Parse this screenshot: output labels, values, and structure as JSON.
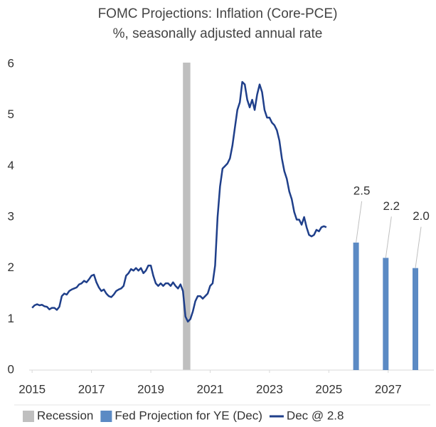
{
  "chart_data": {
    "type": "line",
    "title": "FOMC Projections: Inflation (Core-PCE)",
    "subtitle": "%, seasonally adjusted annual rate",
    "xlim": [
      2014.9,
      2028.3
    ],
    "xticks": [
      2015,
      2017,
      2019,
      2021,
      2023,
      2025,
      2027
    ],
    "ylim": [
      0,
      6
    ],
    "yticks": [
      0,
      1,
      2,
      3,
      4,
      5,
      6
    ],
    "grid": false,
    "legend": "bottom",
    "shading": {
      "name": "Recession",
      "color": "#bfbfbf",
      "x": [
        2020.083,
        2020.333
      ]
    },
    "series": [
      {
        "name": "Fed Projection for YE (Dec)",
        "type": "bar",
        "color": "#5b8ac4",
        "x": [
          2025.917,
          2026.917,
          2027.917
        ],
        "values": [
          2.5,
          2.2,
          2.0
        ],
        "value_labels": [
          "2.5",
          "2.2",
          "2.0"
        ]
      },
      {
        "name": "Dec @ 2.8",
        "type": "line",
        "color": "#1f3f8a",
        "x": [
          2015,
          2015.083,
          2015.167,
          2015.25,
          2015.333,
          2015.417,
          2015.5,
          2015.583,
          2015.667,
          2015.75,
          2015.833,
          2015.917,
          2016,
          2016.083,
          2016.167,
          2016.25,
          2016.333,
          2016.417,
          2016.5,
          2016.583,
          2016.667,
          2016.75,
          2016.833,
          2016.917,
          2017,
          2017.083,
          2017.167,
          2017.25,
          2017.333,
          2017.417,
          2017.5,
          2017.583,
          2017.667,
          2017.75,
          2017.833,
          2017.917,
          2018,
          2018.083,
          2018.167,
          2018.25,
          2018.333,
          2018.417,
          2018.5,
          2018.583,
          2018.667,
          2018.75,
          2018.833,
          2018.917,
          2019,
          2019.083,
          2019.167,
          2019.25,
          2019.333,
          2019.417,
          2019.5,
          2019.583,
          2019.667,
          2019.75,
          2019.833,
          2019.917,
          2020,
          2020.083,
          2020.167,
          2020.25,
          2020.333,
          2020.417,
          2020.5,
          2020.583,
          2020.667,
          2020.75,
          2020.833,
          2020.917,
          2021,
          2021.083,
          2021.167,
          2021.25,
          2021.333,
          2021.417,
          2021.5,
          2021.583,
          2021.667,
          2021.75,
          2021.833,
          2021.917,
          2022,
          2022.083,
          2022.167,
          2022.25,
          2022.333,
          2022.417,
          2022.5,
          2022.583,
          2022.667,
          2022.75,
          2022.833,
          2022.917,
          2023,
          2023.083,
          2023.167,
          2023.25,
          2023.333,
          2023.417,
          2023.5,
          2023.583,
          2023.667,
          2023.75,
          2023.833,
          2023.917,
          2024,
          2024.083,
          2024.167,
          2024.25,
          2024.333,
          2024.417,
          2024.5,
          2024.583,
          2024.667,
          2024.75,
          2024.833,
          2024.917
        ],
        "values": [
          1.22,
          1.27,
          1.29,
          1.27,
          1.28,
          1.25,
          1.24,
          1.19,
          1.22,
          1.22,
          1.18,
          1.24,
          1.45,
          1.5,
          1.48,
          1.55,
          1.58,
          1.6,
          1.62,
          1.68,
          1.7,
          1.75,
          1.72,
          1.78,
          1.85,
          1.87,
          1.72,
          1.62,
          1.55,
          1.58,
          1.5,
          1.45,
          1.43,
          1.48,
          1.55,
          1.58,
          1.6,
          1.65,
          1.85,
          1.9,
          1.98,
          1.95,
          2.0,
          1.95,
          2.0,
          1.9,
          1.95,
          2.05,
          2.05,
          1.85,
          1.7,
          1.65,
          1.7,
          1.65,
          1.7,
          1.7,
          1.65,
          1.72,
          1.65,
          1.6,
          1.68,
          1.55,
          1.05,
          0.95,
          1.0,
          1.15,
          1.35,
          1.45,
          1.45,
          1.4,
          1.45,
          1.5,
          1.65,
          1.7,
          2.05,
          3.0,
          3.6,
          3.95,
          4.0,
          4.05,
          4.15,
          4.4,
          4.75,
          5.1,
          5.25,
          5.65,
          5.6,
          5.3,
          5.15,
          5.3,
          5.1,
          5.4,
          5.6,
          5.45,
          5.1,
          4.95,
          4.95,
          4.85,
          4.8,
          4.7,
          4.5,
          4.15,
          3.9,
          3.75,
          3.5,
          3.35,
          3.1,
          2.95,
          2.95,
          2.85,
          3.0,
          2.8,
          2.65,
          2.62,
          2.65,
          2.75,
          2.72,
          2.8,
          2.82,
          2.8
        ]
      }
    ]
  }
}
